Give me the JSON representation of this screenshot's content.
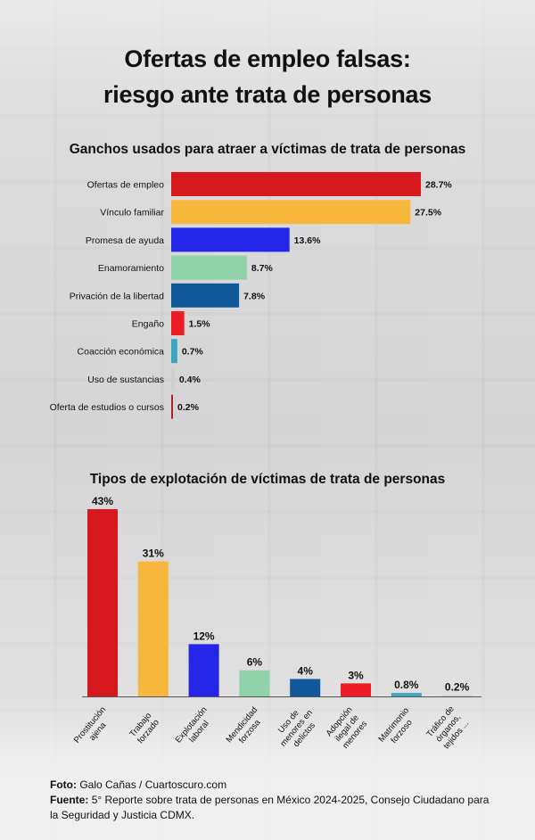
{
  "title": {
    "line1": "Ofertas de empleo falsas:",
    "line2": "riesgo ante trata de personas"
  },
  "footer": {
    "photo_label": "Foto:",
    "photo_text": "Galo Cañas / Cuartoscuro.com",
    "source_label": "Fuente:",
    "source_text": "5° Reporte sobre trata de personas en México 2024-2025, Consejo Ciudadano para la Seguridad y Justicia CDMX."
  },
  "chart_data": [
    {
      "type": "bar",
      "orientation": "horizontal",
      "title": "Ganchos usados para atraer a víctimas de trata de personas",
      "categories": [
        "Ofertas de empleo",
        "Vínculo familiar",
        "Promesa de ayuda",
        "Enamoramiento",
        "Privación de la libertad",
        "Engaño",
        "Coacción económica",
        "Uso de sustancias",
        "Oferta de estudios o cursos"
      ],
      "values": [
        28.7,
        27.5,
        13.6,
        8.7,
        7.8,
        1.5,
        0.7,
        0.4,
        0.2
      ],
      "value_labels": [
        "28.7%",
        "27.5%",
        "13.6%",
        "8.7%",
        "7.8%",
        "1.5%",
        "0.7%",
        "0.4%",
        "0.2%"
      ],
      "colors": [
        "#d7191f",
        "#f6b73c",
        "#2525e8",
        "#8fd1a9",
        "#10589a",
        "#ee1c24",
        "#3aa6bf",
        "#cfcfcf",
        "#b2232d"
      ],
      "xlim": [
        0,
        28.7
      ]
    },
    {
      "type": "bar",
      "orientation": "vertical",
      "title": "Tipos de explotación de víctimas de trata de personas",
      "categories": [
        "Prostitución ajena",
        "Trabajo forzado",
        "Explotación laboral",
        "Mendicidad forzosa",
        "Uso de menores en delictos",
        "Adopción ilegal de menores",
        "Matrimonio forzoso",
        "Tráfico de órganos, tejidos ..."
      ],
      "values": [
        43,
        31,
        12,
        6,
        4,
        3,
        0.8,
        0.2
      ],
      "value_labels": [
        "43%",
        "31%",
        "12%",
        "6%",
        "4%",
        "3%",
        "0.8%",
        "0.2%"
      ],
      "colors": [
        "#d7191f",
        "#f6b73c",
        "#2525e8",
        "#8fd1a9",
        "#10589a",
        "#ee1c24",
        "#3aa6bf",
        "#cfcfcf"
      ],
      "ylim": [
        0,
        43
      ]
    }
  ]
}
